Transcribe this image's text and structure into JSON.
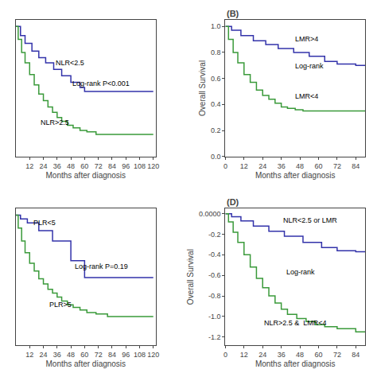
{
  "chart_data": [
    {
      "type": "step",
      "x_label": "Months after diagnosis",
      "xlim": [
        0,
        122
      ],
      "ylim": [
        0,
        1.05
      ],
      "xticks": [
        12,
        24,
        36,
        48,
        60,
        72,
        84,
        96,
        108,
        120
      ],
      "tick_labels": "x",
      "grid": false,
      "series": [
        {
          "color": "#3333AA",
          "x": [
            0,
            4,
            8,
            14,
            20,
            26,
            33,
            40,
            48,
            56,
            60,
            120
          ],
          "values": [
            1.0,
            0.93,
            0.87,
            0.81,
            0.76,
            0.72,
            0.67,
            0.62,
            0.57,
            0.53,
            0.5,
            0.5
          ]
        },
        {
          "color": "#3A9A3A",
          "x": [
            0,
            2,
            5,
            8,
            12,
            16,
            20,
            24,
            28,
            32,
            36,
            40,
            45,
            50,
            56,
            62,
            70,
            120
          ],
          "values": [
            1.0,
            0.9,
            0.8,
            0.72,
            0.63,
            0.55,
            0.48,
            0.43,
            0.38,
            0.34,
            0.3,
            0.27,
            0.24,
            0.22,
            0.2,
            0.19,
            0.17,
            0.17
          ]
        }
      ],
      "annotations": [
        {
          "text": "NLR<2.5",
          "x": 33,
          "y": 0.68
        },
        {
          "text": "Log-rank P<0.001",
          "x": 48,
          "y": 0.52
        },
        {
          "text": "NLR>2.5",
          "x": 20,
          "y": 0.22
        }
      ]
    },
    {
      "type": "step",
      "title": "(B)",
      "x_label": "Months after diagnosis",
      "y_label": "Overall Survival",
      "xlim": [
        0,
        90
      ],
      "ylim": [
        0,
        1.05
      ],
      "xticks": [
        0,
        12,
        24,
        36,
        48,
        60,
        72,
        84
      ],
      "yticks": [
        {
          "value": 0,
          "label": "0.0"
        },
        0.2,
        0.4,
        0.6,
        0.8,
        {
          "value": 1,
          "label": "1.0"
        }
      ],
      "grid": false,
      "series": [
        {
          "color": "#3333AA",
          "x": [
            0,
            4,
            10,
            18,
            26,
            34,
            44,
            54,
            64,
            72,
            84,
            90
          ],
          "values": [
            1.0,
            0.97,
            0.93,
            0.89,
            0.86,
            0.83,
            0.8,
            0.77,
            0.73,
            0.71,
            0.7,
            0.7
          ]
        },
        {
          "color": "#3A9A3A",
          "x": [
            0,
            2,
            5,
            8,
            12,
            16,
            20,
            24,
            28,
            32,
            36,
            40,
            45,
            50,
            56,
            62,
            70,
            84,
            90
          ],
          "values": [
            1.0,
            0.9,
            0.8,
            0.72,
            0.63,
            0.57,
            0.51,
            0.47,
            0.44,
            0.41,
            0.38,
            0.37,
            0.36,
            0.35,
            0.35,
            0.35,
            0.35,
            0.35,
            0.35
          ]
        }
      ],
      "annotations": [
        {
          "text": "LMR>4",
          "x": 44,
          "y": 0.86
        },
        {
          "text": "Log-rank",
          "x": 44,
          "y": 0.65
        },
        {
          "text": "LMR<4",
          "x": 44,
          "y": 0.42
        }
      ]
    },
    {
      "type": "step",
      "x_label": "Months after diagnosis",
      "xlim": [
        0,
        122
      ],
      "ylim": [
        0,
        1.05
      ],
      "xticks": [
        12,
        24,
        36,
        48,
        60,
        72,
        84,
        96,
        108,
        120
      ],
      "tick_labels": "x",
      "grid": false,
      "series": [
        {
          "color": "#3333AA",
          "x": [
            0,
            4,
            10,
            20,
            32,
            48,
            60,
            120
          ],
          "values": [
            1.0,
            0.97,
            0.94,
            0.88,
            0.8,
            0.65,
            0.52,
            0.52
          ]
        },
        {
          "color": "#3A9A3A",
          "x": [
            0,
            2,
            5,
            8,
            12,
            16,
            20,
            24,
            28,
            32,
            36,
            40,
            45,
            50,
            56,
            62,
            70,
            80,
            120
          ],
          "values": [
            1.0,
            0.9,
            0.8,
            0.71,
            0.63,
            0.57,
            0.51,
            0.47,
            0.43,
            0.4,
            0.37,
            0.34,
            0.31,
            0.29,
            0.27,
            0.25,
            0.24,
            0.22,
            0.22
          ]
        }
      ],
      "annotations": [
        {
          "text": "PLR<5",
          "x": 14,
          "y": 0.9
        },
        {
          "text": "Log-rank P=0.19",
          "x": 50,
          "y": 0.56
        },
        {
          "text": "PLR>5",
          "x": 28,
          "y": 0.27
        }
      ]
    },
    {
      "type": "step",
      "title": "(D)",
      "x_label": "Months after diagnosis",
      "y_label": "Overall Survival",
      "xlim": [
        0,
        90
      ],
      "ylim": [
        -1.28,
        0.05
      ],
      "xticks": [
        0,
        12,
        24,
        36,
        48,
        60,
        72,
        84
      ],
      "yticks": [
        {
          "value": 0,
          "label": "0.0000"
        },
        -0.2,
        -0.4,
        -0.6,
        -0.8,
        {
          "value": -1,
          "label": "-1.0"
        },
        -1.2
      ],
      "grid": false,
      "series": [
        {
          "color": "#3333AA",
          "x": [
            0,
            4,
            10,
            18,
            28,
            38,
            50,
            62,
            72,
            84,
            90
          ],
          "values": [
            0.0,
            -0.03,
            -0.07,
            -0.12,
            -0.17,
            -0.22,
            -0.28,
            -0.33,
            -0.36,
            -0.37,
            -0.37
          ]
        },
        {
          "color": "#3A9A3A",
          "x": [
            0,
            2,
            5,
            8,
            12,
            16,
            20,
            24,
            28,
            32,
            36,
            40,
            46,
            52,
            58,
            64,
            72,
            84,
            90
          ],
          "values": [
            0.0,
            -0.08,
            -0.18,
            -0.28,
            -0.4,
            -0.52,
            -0.63,
            -0.72,
            -0.8,
            -0.87,
            -0.93,
            -0.98,
            -1.02,
            -1.05,
            -1.08,
            -1.1,
            -1.12,
            -1.15,
            -1.15
          ]
        }
      ],
      "annotations": [
        {
          "text": "NLR<2.5 or LMR",
          "x": 36,
          "y": -0.12
        },
        {
          "text": "Log-rank",
          "x": 38,
          "y": -0.62
        },
        {
          "text": "NLR>2.5 &  LMR<4",
          "x": 24,
          "y": -1.12
        }
      ]
    }
  ]
}
